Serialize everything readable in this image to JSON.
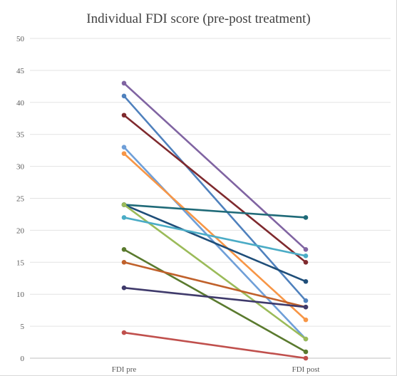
{
  "chart_data": {
    "type": "line",
    "title": "Individual FDI score (pre-post treatment)",
    "categories": [
      "FDI pre",
      "FDI post"
    ],
    "ylim": [
      0,
      50
    ],
    "yticks": [
      0,
      5,
      10,
      15,
      20,
      25,
      30,
      35,
      40,
      45,
      50
    ],
    "grid": true,
    "legend": "none",
    "series": [
      {
        "values": [
          43,
          17
        ],
        "color": "#8064a2"
      },
      {
        "values": [
          41,
          9
        ],
        "color": "#4f81bd"
      },
      {
        "values": [
          38,
          15
        ],
        "color": "#7f2a2e"
      },
      {
        "values": [
          33,
          3
        ],
        "color": "#6f9fd8"
      },
      {
        "values": [
          32,
          6
        ],
        "color": "#f79646"
      },
      {
        "values": [
          24,
          22
        ],
        "color": "#1f6a78"
      },
      {
        "values": [
          24,
          12
        ],
        "color": "#1f4e79"
      },
      {
        "values": [
          24,
          3
        ],
        "color": "#9bbb59"
      },
      {
        "values": [
          22,
          16
        ],
        "color": "#4bacc6"
      },
      {
        "values": [
          17,
          1
        ],
        "color": "#5a7a2e"
      },
      {
        "values": [
          15,
          8
        ],
        "color": "#c0612b"
      },
      {
        "values": [
          11,
          8
        ],
        "color": "#3f3a6b"
      },
      {
        "values": [
          4,
          0
        ],
        "color": "#c0504d"
      }
    ]
  }
}
